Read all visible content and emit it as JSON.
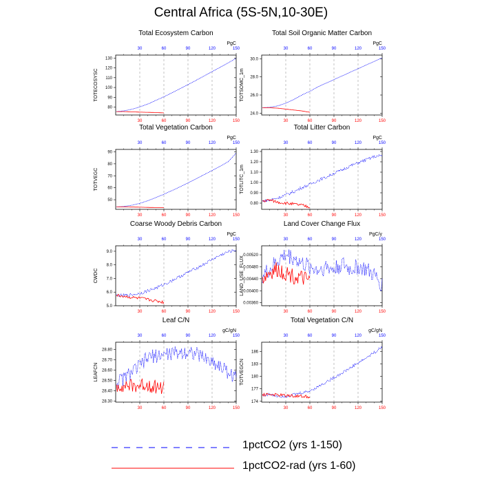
{
  "title": "Central Africa (5S-5N,10-30E)",
  "colors": {
    "series1": "#0000ff",
    "series2": "#ff0000",
    "axis": "#000000",
    "guide": "#999999"
  },
  "legend": [
    {
      "label": "1pctCO2 (yrs 1-150)",
      "color": "#0000ff",
      "dash": "dashed"
    },
    {
      "label": "1pctCO2-rad (yrs 1-60)",
      "color": "#ff0000",
      "dash": "solid"
    }
  ],
  "chart_data": [
    {
      "type": "line",
      "title": "Total Ecosystem Carbon",
      "ylabel": "TOTECOSYSC",
      "units": "PgC",
      "xlim": [
        0,
        150
      ],
      "ylim": [
        72,
        133
      ],
      "xticks": [
        30,
        60,
        90,
        120,
        150
      ],
      "yticks": [
        80,
        90,
        100,
        110,
        120,
        130
      ],
      "guides": [
        30,
        60,
        90,
        120
      ],
      "series": [
        {
          "name": "1pctCO2 (yrs 1-150)",
          "color": "#0000ff",
          "x": [
            1,
            10,
            20,
            30,
            40,
            50,
            60,
            70,
            80,
            90,
            100,
            110,
            120,
            130,
            140,
            150
          ],
          "y": [
            75.5,
            76.2,
            77.8,
            80.2,
            83.2,
            86.8,
            90.6,
            94.6,
            98.8,
            103,
            107.3,
            111.7,
            116.1,
            120.6,
            125.1,
            129.6
          ]
        },
        {
          "name": "1pctCO2-rad (yrs 1-60)",
          "color": "#ff0000",
          "x": [
            1,
            10,
            20,
            30,
            40,
            50,
            60
          ],
          "y": [
            75.4,
            75.5,
            75.2,
            74.9,
            74.7,
            74.5,
            74.1
          ]
        }
      ]
    },
    {
      "type": "line",
      "title": "Total Soil Organic Matter Carbon",
      "ylabel": "TOTSOMC_1m",
      "units": "PgC",
      "xlim": [
        0,
        150
      ],
      "ylim": [
        23.8,
        30.4
      ],
      "xticks": [
        30,
        60,
        90,
        120,
        150
      ],
      "yticks": [
        24.0,
        26.0,
        28.0,
        30.0
      ],
      "guides": [
        30,
        60,
        90,
        120
      ],
      "series": [
        {
          "name": "1pctCO2 (yrs 1-150)",
          "color": "#0000ff",
          "x": [
            1,
            10,
            20,
            30,
            40,
            50,
            60,
            70,
            80,
            90,
            100,
            110,
            120,
            130,
            140,
            150
          ],
          "y": [
            24.6,
            24.65,
            24.8,
            25.1,
            25.5,
            26,
            26.4,
            26.9,
            27.3,
            27.7,
            28.1,
            28.5,
            28.9,
            29.3,
            29.7,
            30.1
          ]
        },
        {
          "name": "1pctCO2-rad (yrs 1-60)",
          "color": "#ff0000",
          "x": [
            1,
            10,
            20,
            30,
            40,
            50,
            60
          ],
          "y": [
            24.6,
            24.6,
            24.55,
            24.45,
            24.35,
            24.25,
            24.1
          ]
        }
      ]
    },
    {
      "type": "line",
      "title": "Total Vegetation Carbon",
      "ylabel": "TOTVEGC",
      "units": "PgC",
      "xlim": [
        0,
        150
      ],
      "ylim": [
        42,
        92
      ],
      "xticks": [
        30,
        60,
        90,
        120,
        150
      ],
      "yticks": [
        50,
        60,
        70,
        80,
        90
      ],
      "guides": [
        30,
        60,
        90,
        120
      ],
      "series": [
        {
          "name": "1pctCO2 (yrs 1-150)",
          "color": "#0000ff",
          "x": [
            1,
            10,
            20,
            30,
            40,
            50,
            60,
            70,
            80,
            90,
            100,
            110,
            120,
            130,
            140,
            150
          ],
          "y": [
            44,
            44.4,
            45.4,
            47,
            49.2,
            51.8,
            54.6,
            57.6,
            60.8,
            64,
            67.4,
            70.9,
            74.4,
            78,
            81.7,
            89
          ]
        },
        {
          "name": "1pctCO2-rad (yrs 1-60)",
          "color": "#ff0000",
          "x": [
            1,
            10,
            20,
            30,
            40,
            50,
            60
          ],
          "y": [
            44,
            44,
            43.9,
            43.8,
            43.6,
            43.5,
            43.4
          ]
        }
      ]
    },
    {
      "type": "line",
      "title": "Total Litter Carbon",
      "ylabel": "TOTLITC_1m",
      "units": "PgC",
      "xlim": [
        0,
        150
      ],
      "ylim": [
        0.74,
        1.32
      ],
      "xticks": [
        30,
        60,
        90,
        120,
        150
      ],
      "yticks": [
        0.8,
        0.9,
        1.0,
        1.1,
        1.2,
        1.3
      ],
      "guides": [
        30,
        60,
        90,
        120
      ],
      "series": [
        {
          "name": "1pctCO2 (yrs 1-150)",
          "color": "#0000ff",
          "x": [
            1,
            10,
            20,
            30,
            40,
            50,
            60,
            70,
            80,
            90,
            100,
            110,
            120,
            130,
            140,
            150
          ],
          "y": [
            0.82,
            0.83,
            0.85,
            0.88,
            0.91,
            0.95,
            0.98,
            1.02,
            1.05,
            1.09,
            1.12,
            1.16,
            1.19,
            1.22,
            1.25,
            1.26
          ]
        },
        {
          "name": "1pctCO2-rad (yrs 1-60)",
          "color": "#ff0000",
          "x": [
            1,
            10,
            20,
            30,
            40,
            50,
            60
          ],
          "y": [
            0.82,
            0.83,
            0.81,
            0.8,
            0.79,
            0.78,
            0.76
          ]
        }
      ]
    },
    {
      "type": "line",
      "title": "Coarse Woody Debris Carbon",
      "ylabel": "CWDC",
      "units": "PgC",
      "xlim": [
        0,
        150
      ],
      "ylim": [
        5.0,
        9.4
      ],
      "xticks": [
        30,
        60,
        90,
        120,
        150
      ],
      "yticks": [
        5.0,
        6.0,
        7.0,
        8.0,
        9.0
      ],
      "guides": [
        30,
        60,
        90,
        120
      ],
      "series": [
        {
          "name": "1pctCO2 (yrs 1-150)",
          "color": "#0000ff",
          "x": [
            1,
            10,
            20,
            30,
            40,
            50,
            60,
            70,
            80,
            90,
            100,
            110,
            120,
            130,
            140,
            150
          ],
          "y": [
            5.75,
            5.75,
            5.8,
            5.9,
            6.1,
            6.3,
            6.55,
            6.85,
            7.15,
            7.45,
            7.75,
            8.05,
            8.4,
            8.7,
            8.95,
            9.1
          ]
        },
        {
          "name": "1pctCO2-rad (yrs 1-60)",
          "color": "#ff0000",
          "x": [
            1,
            10,
            20,
            30,
            40,
            50,
            60
          ],
          "y": [
            5.75,
            5.7,
            5.6,
            5.55,
            5.45,
            5.35,
            5.25
          ]
        }
      ]
    },
    {
      "type": "line",
      "title": "Land Cover Change Flux",
      "ylabel": "LAND_USE_FLUX",
      "units": "PgC/y",
      "xlim": [
        0,
        150
      ],
      "ylim": [
        0.0035,
        0.0055
      ],
      "xticks": [
        30,
        60,
        90,
        120,
        150
      ],
      "yticks": [
        0.0036,
        0.004,
        0.0044,
        0.0048,
        0.0052
      ],
      "yfmt": 5,
      "guides": [
        30,
        60,
        90,
        120
      ],
      "series": [
        {
          "name": "1pctCO2 (yrs 1-150)",
          "color": "#0000ff",
          "x": [
            1,
            10,
            20,
            30,
            40,
            50,
            60,
            70,
            80,
            90,
            100,
            110,
            120,
            130,
            140,
            150
          ],
          "y": [
            0.0045,
            0.0047,
            0.005,
            0.0052,
            0.0051,
            0.0049,
            0.0048,
            0.0047,
            0.0048,
            0.0047,
            0.0049,
            0.0047,
            0.0048,
            0.0047,
            0.0045,
            0.0042
          ]
        },
        {
          "name": "1pctCO2-rad (yrs 1-60)",
          "color": "#ff0000",
          "x": [
            1,
            10,
            20,
            30,
            40,
            50,
            60
          ],
          "y": [
            0.0044,
            0.0046,
            0.0047,
            0.0046,
            0.0045,
            0.0044,
            0.0043
          ]
        }
      ]
    },
    {
      "type": "line",
      "title": "Leaf C/N",
      "ylabel": "LEAFCN",
      "units": "gC/gN",
      "xlim": [
        0,
        150
      ],
      "ylim": [
        28.29,
        28.87
      ],
      "xticks": [
        30,
        60,
        90,
        120,
        150
      ],
      "yticks": [
        28.3,
        28.4,
        28.5,
        28.6,
        28.7,
        28.8
      ],
      "guides": [
        30,
        60,
        90,
        120
      ],
      "series": [
        {
          "name": "1pctCO2 (yrs 1-150)",
          "color": "#0000ff",
          "x": [
            1,
            10,
            20,
            30,
            40,
            50,
            60,
            70,
            80,
            90,
            100,
            110,
            120,
            130,
            140,
            150
          ],
          "y": [
            28.48,
            28.52,
            28.58,
            28.64,
            28.72,
            28.74,
            28.75,
            28.76,
            28.77,
            28.78,
            28.76,
            28.72,
            28.68,
            28.64,
            28.58,
            28.52
          ]
        },
        {
          "name": "1pctCO2-rad (yrs 1-60)",
          "color": "#ff0000",
          "x": [
            1,
            10,
            20,
            30,
            40,
            50,
            60
          ],
          "y": [
            28.44,
            28.46,
            28.44,
            28.45,
            28.46,
            28.44,
            28.43
          ]
        }
      ]
    },
    {
      "type": "line",
      "title": "Total Vegetation C/N",
      "ylabel": "TOTVEGCN",
      "units": "gC/gN",
      "xlim": [
        0,
        150
      ],
      "ylim": [
        173.8,
        188.2
      ],
      "xticks": [
        30,
        60,
        90,
        120,
        150
      ],
      "yticks": [
        174,
        177,
        180,
        183,
        186
      ],
      "guides": [
        30,
        60,
        90,
        120
      ],
      "series": [
        {
          "name": "1pctCO2 (yrs 1-150)",
          "color": "#0000ff",
          "x": [
            1,
            10,
            20,
            30,
            40,
            50,
            60,
            70,
            80,
            90,
            100,
            110,
            120,
            130,
            140,
            150
          ],
          "y": [
            175.5,
            175.6,
            175.3,
            175.2,
            175.6,
            176,
            176.5,
            177.5,
            178.6,
            179.7,
            180.8,
            182,
            183.2,
            184.4,
            185.7,
            187
          ]
        },
        {
          "name": "1pctCO2-rad (yrs 1-60)",
          "color": "#ff0000",
          "x": [
            1,
            10,
            20,
            30,
            40,
            50,
            60
          ],
          "y": [
            175.6,
            175.7,
            175.5,
            175.4,
            175.3,
            175.2,
            175.1
          ]
        }
      ]
    }
  ]
}
